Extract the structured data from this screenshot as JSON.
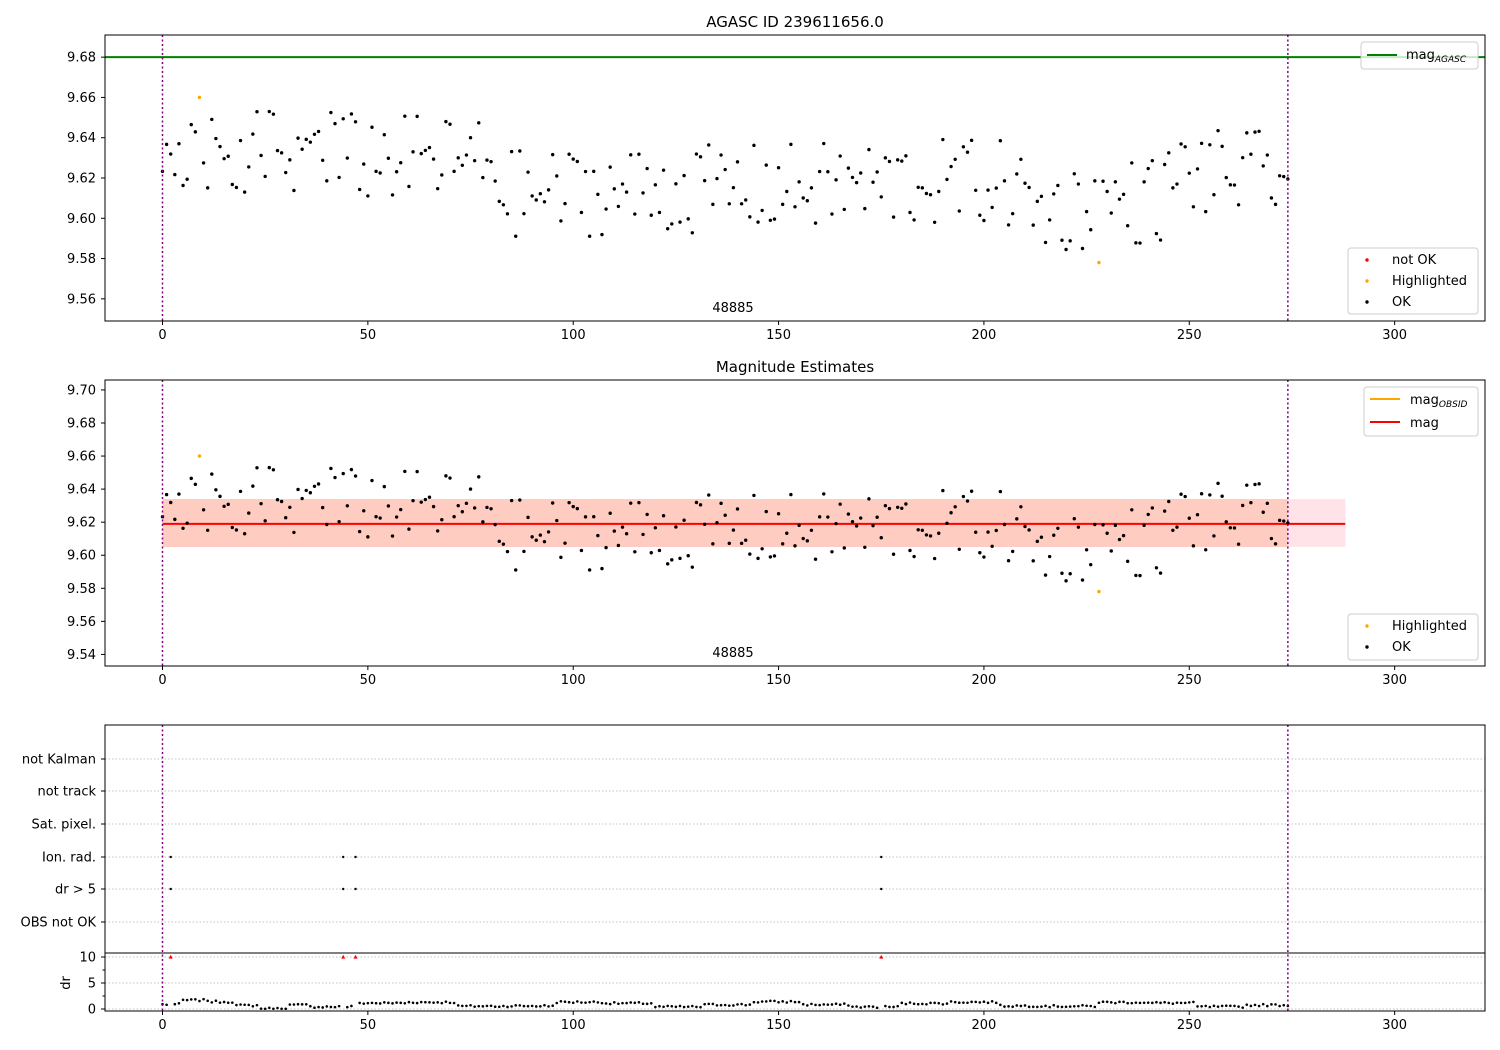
{
  "chart_data": [
    {
      "type": "scatter",
      "title": "AGASC ID 239611656.0",
      "annotation": "48885",
      "xlim": [
        -14,
        322
      ],
      "ylim": [
        9.549,
        9.691
      ],
      "x_ticks": [
        0,
        50,
        100,
        150,
        200,
        250,
        300
      ],
      "y_ticks": [
        9.56,
        9.58,
        9.6,
        9.62,
        9.64,
        9.66,
        9.68
      ],
      "vlines_x": [
        0,
        274
      ],
      "hline": {
        "name": "mag_AGASC",
        "y": 9.68,
        "color": "#008000"
      },
      "legend_top": [
        {
          "label": "mag",
          "sub": "AGASC",
          "color": "#008000",
          "kind": "line"
        }
      ],
      "legend_bottom": [
        {
          "label": "not OK",
          "color": "#ff0000",
          "kind": "dot"
        },
        {
          "label": "Highlighted",
          "color": "#ffa500",
          "kind": "dot"
        },
        {
          "label": "OK",
          "color": "#000000",
          "kind": "dot"
        }
      ],
      "highlighted_points": [
        [
          9,
          9.66
        ],
        [
          228,
          9.578
        ]
      ]
    },
    {
      "type": "scatter",
      "title": "Magnitude Estimates",
      "annotation": "48885",
      "xlim": [
        -14,
        322
      ],
      "ylim": [
        9.533,
        9.706
      ],
      "x_ticks": [
        0,
        50,
        100,
        150,
        200,
        250,
        300
      ],
      "y_ticks": [
        9.54,
        9.56,
        9.58,
        9.6,
        9.62,
        9.64,
        9.66,
        9.68,
        9.7
      ],
      "vlines_x": [
        0,
        274
      ],
      "mag_line": {
        "y": 9.619,
        "color": "#ff0000",
        "x_range": [
          0,
          288
        ]
      },
      "band": {
        "y_range": [
          9.605,
          9.634
        ],
        "x_range": [
          0,
          288
        ],
        "color": "#ffc0cb"
      },
      "obsid_band": {
        "y_range": [
          9.605,
          9.634
        ],
        "x_range": [
          0,
          274
        ],
        "color": "#ffa07a"
      },
      "legend_top": [
        {
          "label": "mag",
          "sub": "OBSID",
          "color": "#ffa500",
          "kind": "line"
        },
        {
          "label": "mag",
          "sub": "",
          "color": "#ff0000",
          "kind": "line"
        }
      ],
      "legend_bottom": [
        {
          "label": "Highlighted",
          "color": "#ffa500",
          "kind": "dot"
        },
        {
          "label": "OK",
          "color": "#000000",
          "kind": "dot"
        }
      ],
      "highlighted_points": [
        [
          9,
          9.66
        ],
        [
          228,
          9.578
        ]
      ]
    },
    {
      "type": "scatter",
      "title": "",
      "xlim": [
        -14,
        322
      ],
      "x_ticks": [
        0,
        50,
        100,
        150,
        200,
        250,
        300
      ],
      "vlines_x": [
        0,
        274
      ],
      "flag_rows": [
        "not Kalman",
        "not track",
        "Sat. pixel.",
        "Ion. rad.",
        "dr > 5",
        "OBS not OK"
      ],
      "flag_points": {
        "Ion. rad.": [
          2,
          44,
          47,
          175
        ],
        "dr > 5": [
          2,
          44,
          47,
          175
        ]
      },
      "dr_ylabel": "dr",
      "dr_ylim": [
        -0.5,
        11.5
      ],
      "dr_ticks": [
        0,
        5,
        10
      ],
      "dr_outliers_x": [
        2,
        44,
        47,
        175
      ],
      "dr_outlier_value": 10
    }
  ],
  "styles": {
    "ok_color": "#000000",
    "highlight_color": "#ffa500",
    "notok_color": "#ff0000",
    "vline_color": "#800080",
    "grid_color": "#b0b0b0"
  }
}
